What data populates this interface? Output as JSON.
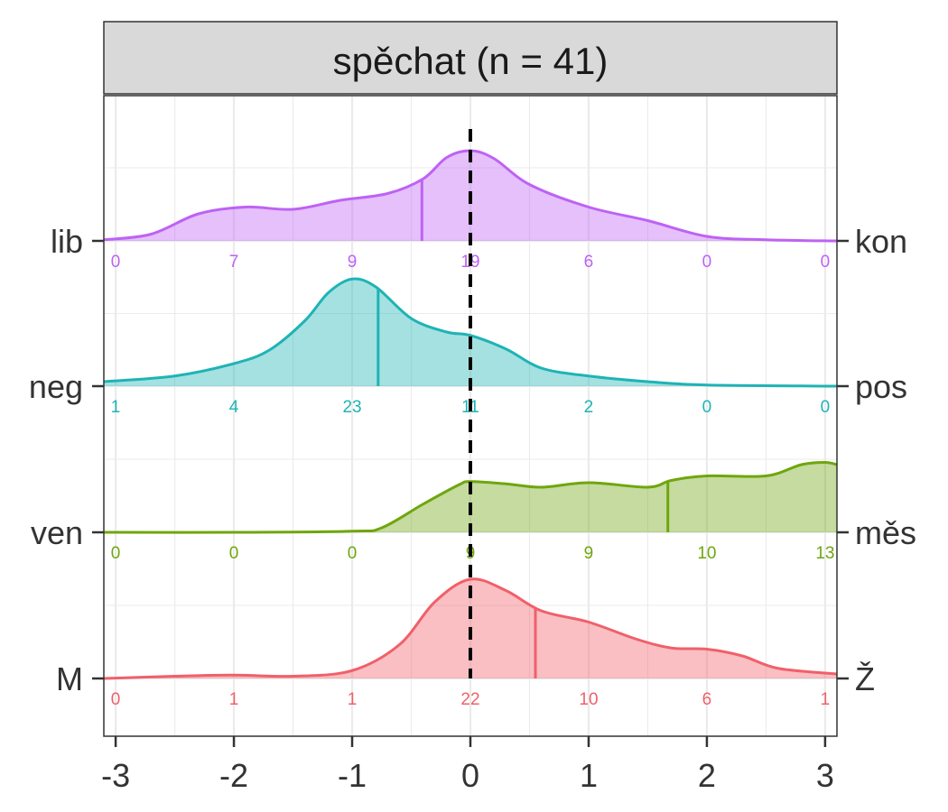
{
  "chart_data": {
    "type": "area",
    "title": "spěchat (n = 41)",
    "xlabel": "",
    "ylabel": "",
    "xlim": [
      -3.1,
      3.1
    ],
    "x_ticks": [
      "-3",
      "-2",
      "-1",
      "0",
      "1",
      "2",
      "3"
    ],
    "x_tick_values": [
      -3,
      -2,
      -1,
      0,
      1,
      2,
      3
    ],
    "reference_line_x": 0,
    "grid": true,
    "legend": "none",
    "series": [
      {
        "left_label": "M",
        "right_label": "Ž",
        "color": "#F0606A",
        "counts": [
          0,
          1,
          1,
          22,
          10,
          6,
          1
        ],
        "count_labels": [
          "0",
          "1",
          "1",
          "22",
          "10",
          "6",
          "1"
        ],
        "median": 0.55,
        "density": [
          [
            -3.1,
            0.0
          ],
          [
            -2.5,
            0.02
          ],
          [
            -2.0,
            0.03
          ],
          [
            -1.5,
            0.02
          ],
          [
            -1.0,
            0.07
          ],
          [
            -0.6,
            0.3
          ],
          [
            -0.3,
            0.68
          ],
          [
            0.0,
            0.88
          ],
          [
            0.3,
            0.78
          ],
          [
            0.6,
            0.6
          ],
          [
            1.0,
            0.5
          ],
          [
            1.4,
            0.35
          ],
          [
            1.7,
            0.27
          ],
          [
            2.0,
            0.26
          ],
          [
            2.3,
            0.2
          ],
          [
            2.6,
            0.09
          ],
          [
            3.1,
            0.04
          ]
        ]
      },
      {
        "left_label": "ven",
        "right_label": "měs",
        "color": "#6FA60E",
        "counts": [
          0,
          0,
          0,
          9,
          9,
          10,
          13
        ],
        "count_labels": [
          "0",
          "0",
          "0",
          "9",
          "9",
          "10",
          "13"
        ],
        "median": 1.67,
        "density": [
          [
            -3.1,
            0.0
          ],
          [
            -2.0,
            0.0
          ],
          [
            -1.0,
            0.01
          ],
          [
            -0.75,
            0.04
          ],
          [
            -0.4,
            0.25
          ],
          [
            -0.1,
            0.42
          ],
          [
            0.0,
            0.45
          ],
          [
            0.3,
            0.43
          ],
          [
            0.6,
            0.4
          ],
          [
            1.0,
            0.44
          ],
          [
            1.5,
            0.4
          ],
          [
            1.7,
            0.46
          ],
          [
            2.0,
            0.5
          ],
          [
            2.5,
            0.5
          ],
          [
            2.8,
            0.6
          ],
          [
            3.0,
            0.62
          ],
          [
            3.1,
            0.6
          ]
        ]
      },
      {
        "left_label": "neg",
        "right_label": "pos",
        "color": "#1FB3B5",
        "counts": [
          1,
          4,
          23,
          11,
          2,
          0,
          0
        ],
        "count_labels": [
          "1",
          "4",
          "23",
          "11",
          "2",
          "0",
          "0"
        ],
        "median": -0.78,
        "density": [
          [
            -3.1,
            0.04
          ],
          [
            -2.5,
            0.09
          ],
          [
            -2.0,
            0.2
          ],
          [
            -1.7,
            0.32
          ],
          [
            -1.4,
            0.58
          ],
          [
            -1.2,
            0.83
          ],
          [
            -1.0,
            0.95
          ],
          [
            -0.8,
            0.88
          ],
          [
            -0.5,
            0.6
          ],
          [
            -0.2,
            0.48
          ],
          [
            0.0,
            0.45
          ],
          [
            0.3,
            0.33
          ],
          [
            0.6,
            0.16
          ],
          [
            1.0,
            0.09
          ],
          [
            1.5,
            0.04
          ],
          [
            2.0,
            0.01
          ],
          [
            3.1,
            0.0
          ]
        ]
      },
      {
        "left_label": "lib",
        "right_label": "kon",
        "color": "#BE62F4",
        "counts": [
          0,
          7,
          9,
          19,
          6,
          0,
          0
        ],
        "count_labels": [
          "0",
          "7",
          "9",
          "19",
          "6",
          "0",
          "0"
        ],
        "median": -0.41,
        "density": [
          [
            -3.1,
            0.01
          ],
          [
            -2.7,
            0.06
          ],
          [
            -2.3,
            0.24
          ],
          [
            -1.9,
            0.3
          ],
          [
            -1.5,
            0.28
          ],
          [
            -1.1,
            0.36
          ],
          [
            -0.7,
            0.42
          ],
          [
            -0.4,
            0.55
          ],
          [
            -0.2,
            0.74
          ],
          [
            0.0,
            0.8
          ],
          [
            0.2,
            0.73
          ],
          [
            0.5,
            0.5
          ],
          [
            1.0,
            0.3
          ],
          [
            1.5,
            0.18
          ],
          [
            2.0,
            0.04
          ],
          [
            2.5,
            0.01
          ],
          [
            3.1,
            0.0
          ]
        ]
      }
    ]
  }
}
